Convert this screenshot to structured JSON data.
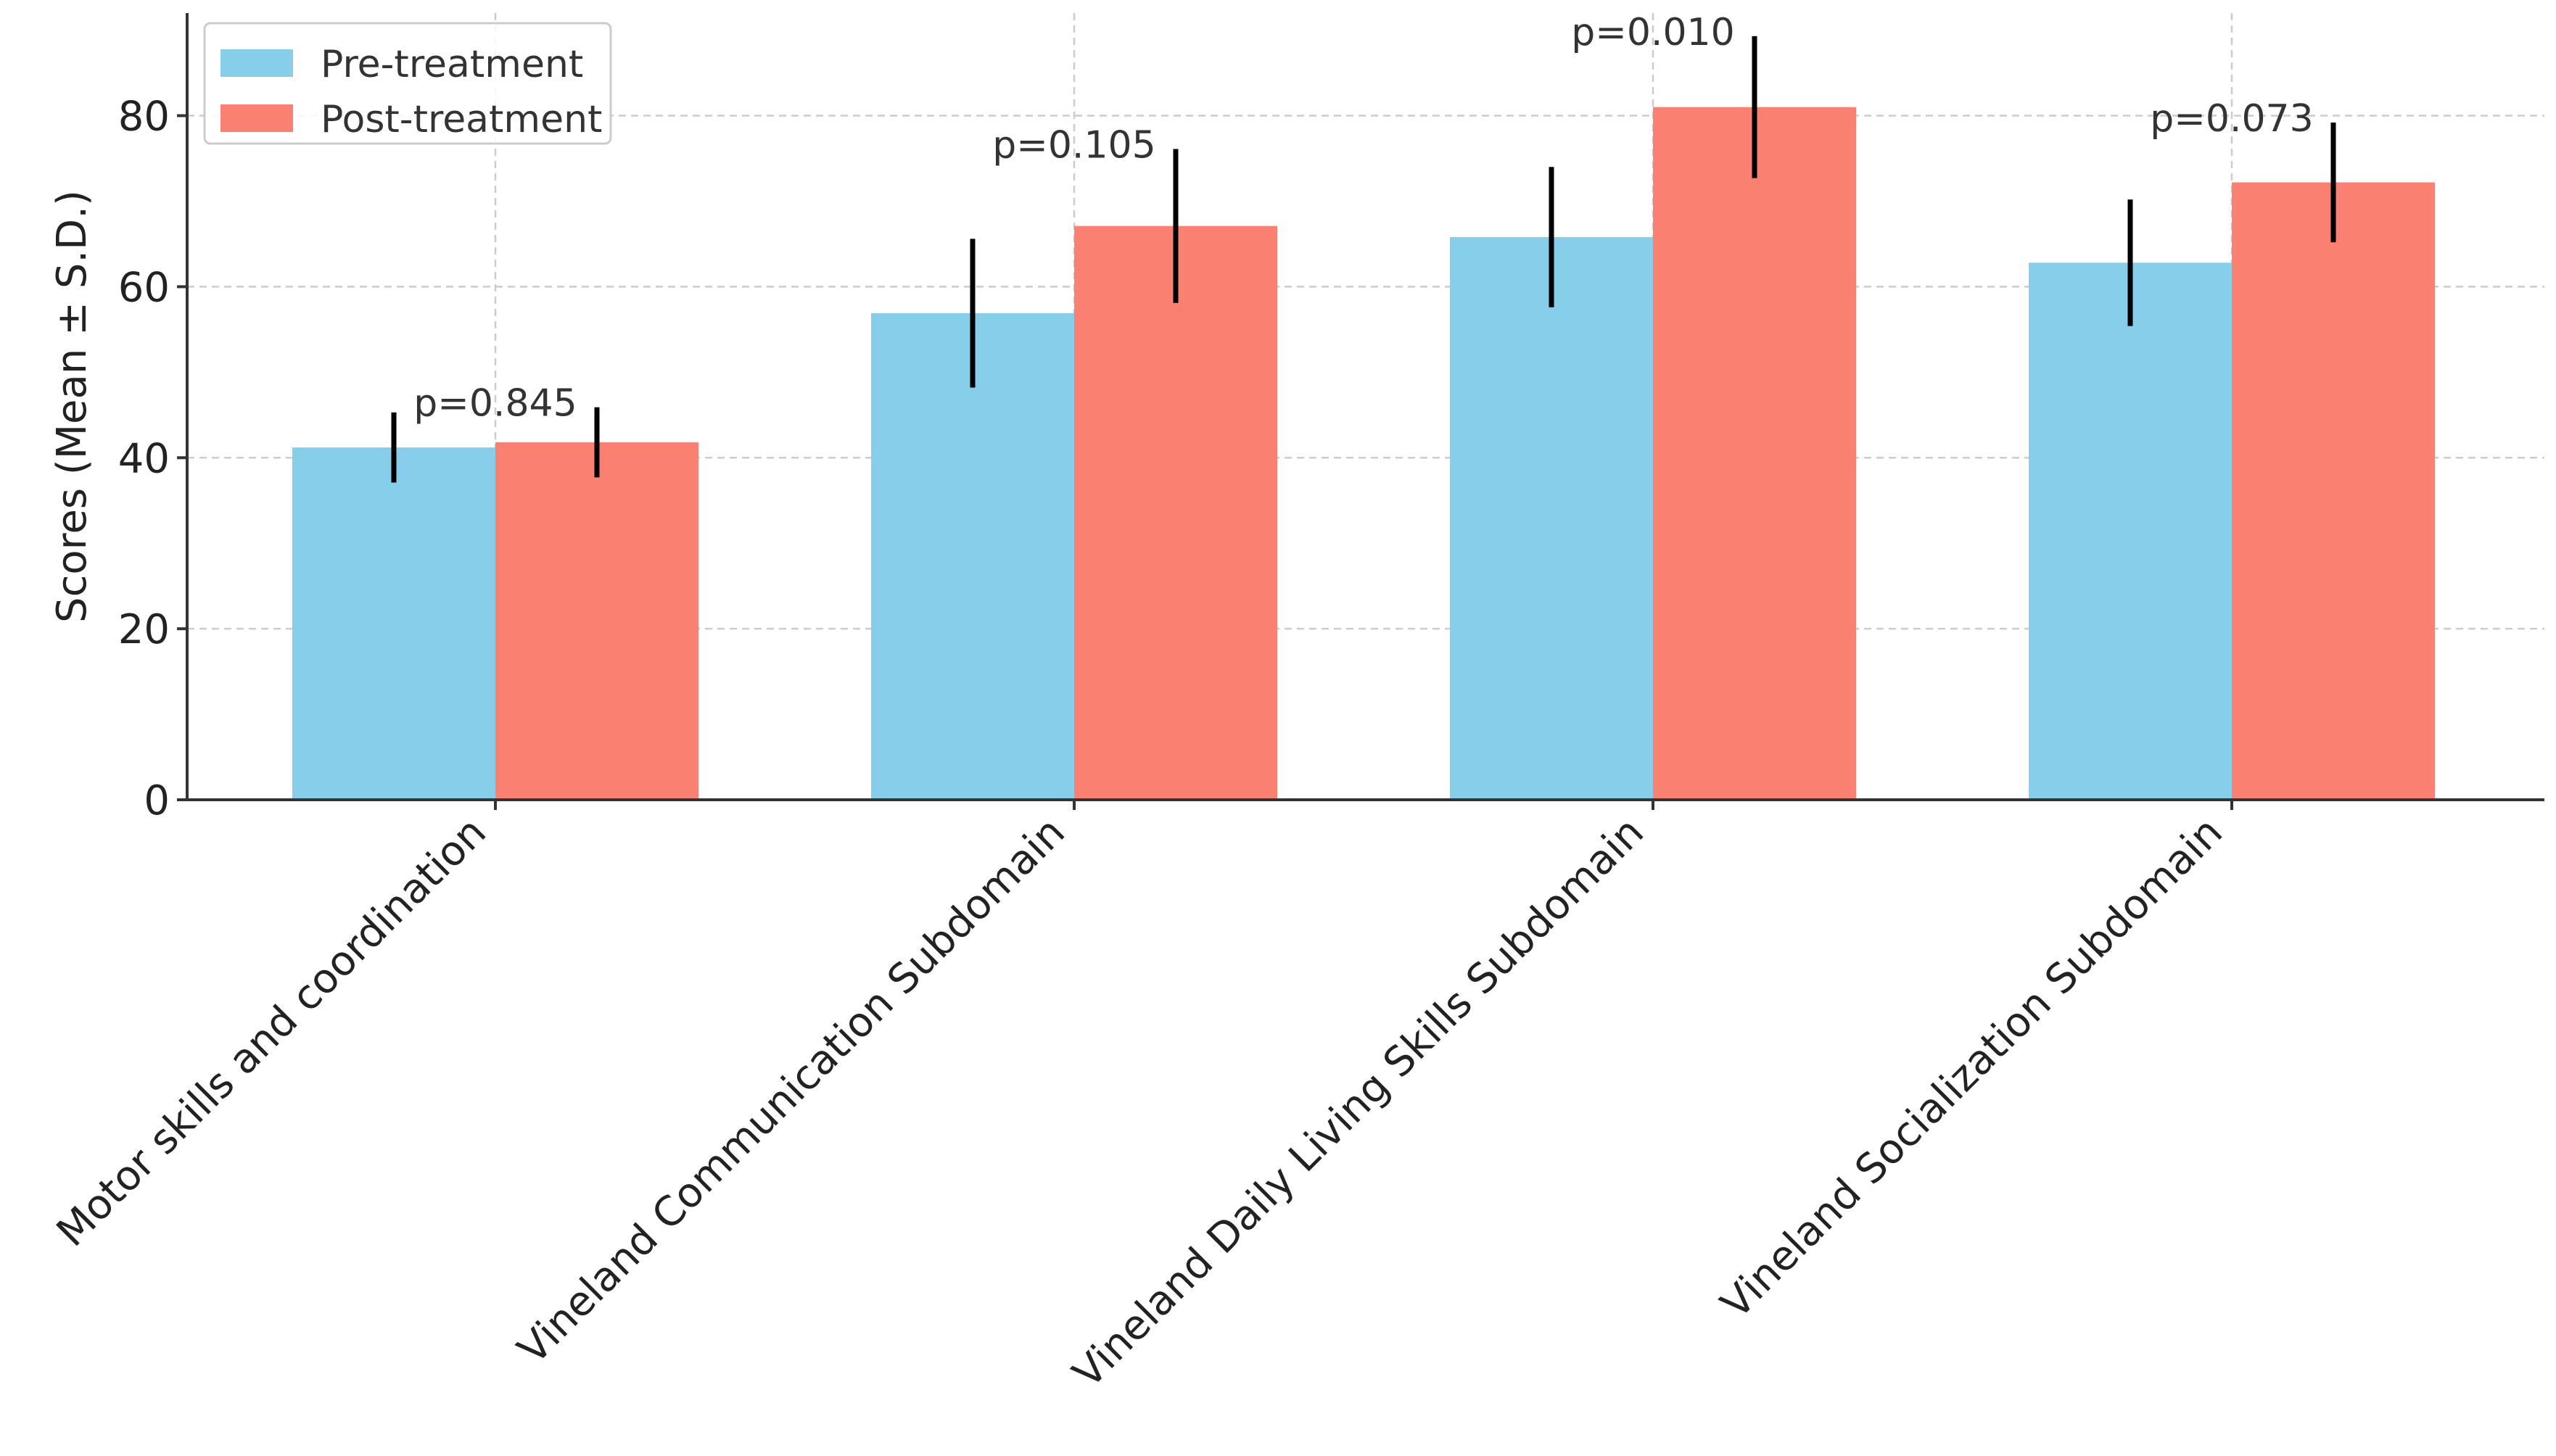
{
  "chart_data": {
    "type": "bar",
    "title": "",
    "xlabel": "",
    "ylabel": "Scores (Mean ± S.D.)",
    "ylim": [
      0,
      92
    ],
    "yticks": [
      0,
      20,
      40,
      60,
      80
    ],
    "grid": true,
    "legend_position": "top-left",
    "categories": [
      "Motor skills and coordination",
      "Vineland Communication Subdomain",
      "Vineland Daily Living Skills Subdomain",
      "Vineland Socialization Subdomain"
    ],
    "series": [
      {
        "name": "Pre-treatment",
        "color": "#87CEEB",
        "values": [
          41.2,
          56.9,
          65.8,
          62.8
        ],
        "sd": [
          4.1,
          8.7,
          8.2,
          7.4
        ]
      },
      {
        "name": "Post-treatment",
        "color": "#FA8072",
        "values": [
          41.8,
          67.1,
          81.0,
          72.2
        ],
        "sd": [
          4.1,
          9.0,
          8.3,
          7.0
        ]
      }
    ],
    "annotations": [
      "p=0.845",
      "p=0.105",
      "p=0.010",
      "p=0.073"
    ]
  }
}
